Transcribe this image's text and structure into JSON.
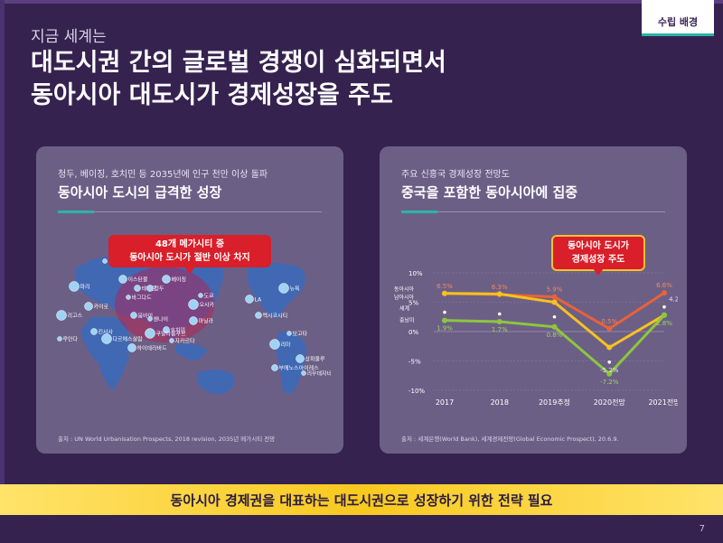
{
  "header": {
    "tag": "수립 배경",
    "kicker": "지금 세계는",
    "title_line1": "대도시권 간의 글로벌 경쟁이 심화되면서",
    "title_line2": "동아시아 대도시가 경제성장을 주도"
  },
  "left_panel": {
    "subtitle": "청두, 베이징, 호치민 등 2035년에 인구 천만 이상 돌파",
    "heading": "동아시아 도시의 급격한 성장",
    "callout_line1": "48개 메가시티 중",
    "callout_line2": "동아시아 도시가 절반 이상 차지",
    "source": "출처 : UN World Urbanisation Prospects, 2018 revision, 2035년 메가시티 전망",
    "cities": [
      "모스크바",
      "파리",
      "이스탄불",
      "테헤란",
      "바그다드",
      "리고스",
      "카이로",
      "킨샤사",
      "루안다",
      "다르에스살람",
      "베이징",
      "청두",
      "도쿄",
      "오사카",
      "마닐라",
      "호치민",
      "자카르타",
      "쿠알라룸푸르",
      "하이데라바드",
      "뭄바이",
      "첸나이",
      "뉴욕",
      "LA",
      "멕시코시티",
      "보고타",
      "리마",
      "상파울루",
      "부에노스아이레스",
      "리우데자네이루"
    ]
  },
  "right_panel": {
    "subtitle": "주요 신흥국 경제성장 전망도",
    "heading": "중국을 포함한 동아시아에 집중",
    "callout_line1": "동아시아 도시가",
    "callout_line2": "경제성장 주도",
    "source": "출처 : 세계은행(World Bank), 세계경제전망(Global Economic Prospect), 20.6.9."
  },
  "chart_data": {
    "type": "line",
    "categories": [
      "2017",
      "2018",
      "2019추정",
      "2020전망",
      "2021전망"
    ],
    "ylim": [
      -10,
      10
    ],
    "y_ticks": [
      "10%",
      "5%",
      "0%",
      "-5%",
      "-10%"
    ],
    "series": [
      {
        "name": "동아시아",
        "color": "#e8623a",
        "values": [
          6.5,
          6.3,
          5.9,
          0.5,
          6.6
        ]
      },
      {
        "name": "남아시아",
        "color": "#f6c21d",
        "values": [
          6.5,
          6.4,
          5.0,
          -2.7,
          2.8
        ]
      },
      {
        "name": "세계",
        "color": "#ffffff",
        "values": [
          3.3,
          3.0,
          2.5,
          -5.2,
          4.2
        ]
      },
      {
        "name": "중남미",
        "color": "#8cc63e",
        "values": [
          1.9,
          1.7,
          0.8,
          -7.2,
          2.8
        ]
      }
    ],
    "data_labels": [
      {
        "text": "6.5%",
        "series": 0,
        "index": 0
      },
      {
        "text": "6.3%",
        "series": 0,
        "index": 1
      },
      {
        "text": "5.9%",
        "series": 0,
        "index": 2
      },
      {
        "text": "0.5%",
        "series": 0,
        "index": 3
      },
      {
        "text": "6.6%",
        "series": 0,
        "index": 4
      },
      {
        "text": "-5.2%",
        "series": 2,
        "index": 3
      },
      {
        "text": "4.2%",
        "series": 2,
        "index": 4
      },
      {
        "text": "1.9%",
        "series": 3,
        "index": 0
      },
      {
        "text": "1.7%",
        "series": 3,
        "index": 1
      },
      {
        "text": "0.8%",
        "series": 3,
        "index": 2
      },
      {
        "text": "-7.2%",
        "series": 3,
        "index": 3
      },
      {
        "text": "2.8%",
        "series": 3,
        "index": 4
      }
    ]
  },
  "banner": {
    "text": "동아시아 경제권을 대표하는 대도시권으로 성장하기 위한 전략 필요"
  },
  "page_number": "7"
}
